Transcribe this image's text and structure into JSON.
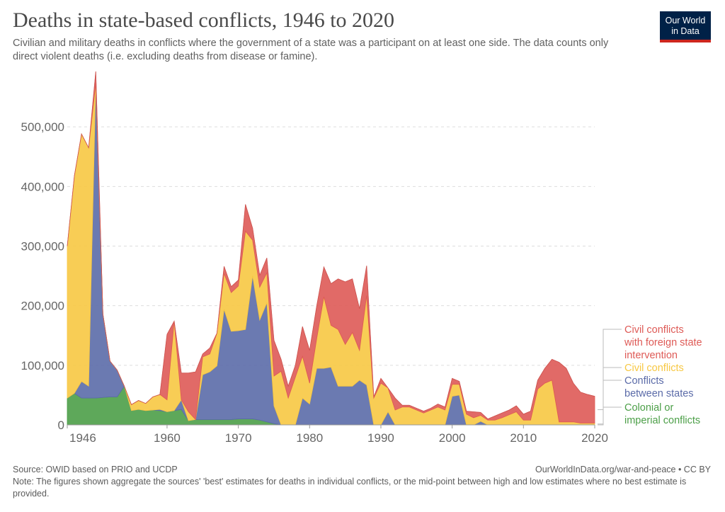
{
  "header": {
    "title": "Deaths in state-based conflicts, 1946 to 2020",
    "subtitle": "Civilian and military deaths in conflicts where the government of a state was a participant on at least one side. The data counts only direct violent deaths (i.e. excluding deaths from disease or famine).",
    "logo_line1": "Our World",
    "logo_line2": "in Data"
  },
  "footer": {
    "source": "Source: OWID based on PRIO and UCDP",
    "url": "OurWorldInData.org/war-and-peace • CC BY",
    "note": "Note: The figures shown aggregate the sources' 'best' estimates for deaths in individual conflicts, or the mid-point between high and low estimates where no best estimate is provided."
  },
  "chart_data": {
    "type": "area",
    "stacked": true,
    "title": "Deaths in state-based conflicts, 1946 to 2020",
    "xlim": [
      1946,
      2020
    ],
    "ylim": [
      0,
      600000
    ],
    "x_ticks": [
      1946,
      1960,
      1970,
      1980,
      1990,
      2000,
      2010,
      2020
    ],
    "x_tick_labels": [
      "1946",
      "1960",
      "1970",
      "1980",
      "1990",
      "2000",
      "2010",
      "2020"
    ],
    "y_ticks": [
      0,
      100000,
      200000,
      300000,
      400000,
      500000
    ],
    "y_tick_labels": [
      "0",
      "100,000",
      "200,000",
      "300,000",
      "400,000",
      "500,000"
    ],
    "grid": true,
    "legend_position": "right",
    "years": [
      1946,
      1947,
      1948,
      1949,
      1950,
      1951,
      1952,
      1953,
      1954,
      1955,
      1956,
      1957,
      1958,
      1959,
      1960,
      1961,
      1962,
      1963,
      1964,
      1965,
      1966,
      1967,
      1968,
      1969,
      1970,
      1971,
      1972,
      1973,
      1974,
      1975,
      1976,
      1977,
      1978,
      1979,
      1980,
      1981,
      1982,
      1983,
      1984,
      1985,
      1986,
      1987,
      1988,
      1989,
      1990,
      1991,
      1992,
      1993,
      1994,
      1995,
      1996,
      1997,
      1998,
      1999,
      2000,
      2001,
      2002,
      2003,
      2004,
      2005,
      2006,
      2007,
      2008,
      2009,
      2010,
      2011,
      2012,
      2013,
      2014,
      2015,
      2016,
      2017,
      2018,
      2019,
      2020
    ],
    "series": [
      {
        "name": "Colonial or imperial conflicts",
        "color": "#4c9f48",
        "values": [
          45000,
          53000,
          45000,
          45000,
          45000,
          46000,
          47000,
          47000,
          65000,
          24000,
          26000,
          24000,
          25000,
          24000,
          22000,
          24000,
          26000,
          7000,
          9000,
          9000,
          9000,
          9000,
          9000,
          9000,
          10000,
          10000,
          10000,
          8000,
          5000,
          2000,
          0,
          0,
          0,
          0,
          0,
          0,
          0,
          0,
          0,
          0,
          0,
          0,
          0,
          0,
          0,
          0,
          0,
          0,
          0,
          0,
          0,
          0,
          0,
          0,
          0,
          0,
          0,
          0,
          0,
          0,
          0,
          0,
          0,
          0,
          0,
          0,
          0,
          0,
          0,
          0,
          0,
          0,
          0,
          0,
          0
        ]
      },
      {
        "name": "Conflicts between states",
        "color": "#5b6ba8",
        "values": [
          0,
          0,
          28000,
          20000,
          528000,
          140000,
          60000,
          45000,
          0,
          0,
          0,
          0,
          0,
          2000,
          0,
          0,
          16000,
          0,
          0,
          75000,
          80000,
          90000,
          185000,
          148000,
          148000,
          150000,
          240000,
          168000,
          200000,
          30000,
          0,
          0,
          0,
          45000,
          35000,
          95000,
          95000,
          97000,
          65000,
          65000,
          65000,
          75000,
          67000,
          0,
          0,
          22000,
          0,
          0,
          0,
          0,
          0,
          0,
          0,
          0,
          48000,
          50000,
          0,
          0,
          6000,
          0,
          0,
          0,
          0,
          0,
          0,
          0,
          0,
          0,
          0,
          0,
          0,
          0,
          0,
          0,
          0
        ]
      },
      {
        "name": "Civil conflicts",
        "color": "#f7c843",
        "values": [
          255000,
          365000,
          415000,
          400000,
          0,
          0,
          0,
          0,
          0,
          10000,
          15000,
          12000,
          22000,
          25000,
          20000,
          150000,
          0,
          15000,
          0,
          30000,
          30000,
          55000,
          60000,
          65000,
          75000,
          165000,
          60000,
          55000,
          50000,
          50000,
          90000,
          45000,
          80000,
          70000,
          35000,
          50000,
          120000,
          70000,
          95000,
          70000,
          90000,
          50000,
          150000,
          45000,
          70000,
          40000,
          25000,
          30000,
          30000,
          25000,
          20000,
          25000,
          30000,
          25000,
          20000,
          18000,
          18000,
          12000,
          10000,
          8000,
          8000,
          12000,
          17000,
          22000,
          8000,
          8000,
          60000,
          70000,
          75000,
          5000,
          5000,
          5000,
          3000,
          3000,
          3000
        ]
      },
      {
        "name": "Civil conflicts with foreign state intervention",
        "color": "#de5a56",
        "values": [
          0,
          0,
          0,
          0,
          20000,
          0,
          0,
          0,
          0,
          0,
          0,
          0,
          0,
          0,
          110000,
          0,
          45000,
          65000,
          80000,
          5000,
          10000,
          0,
          12000,
          10000,
          10000,
          45000,
          20000,
          20000,
          25000,
          60000,
          20000,
          20000,
          20000,
          50000,
          55000,
          55000,
          50000,
          70000,
          85000,
          105000,
          90000,
          70000,
          50000,
          2000,
          8000,
          0,
          20000,
          3000,
          3000,
          3000,
          3000,
          3000,
          5000,
          5000,
          10000,
          5000,
          5000,
          10000,
          5000,
          2000,
          7000,
          8000,
          8000,
          10000,
          10000,
          15000,
          15000,
          25000,
          35000,
          100000,
          90000,
          65000,
          52000,
          48000,
          45000
        ]
      }
    ]
  }
}
